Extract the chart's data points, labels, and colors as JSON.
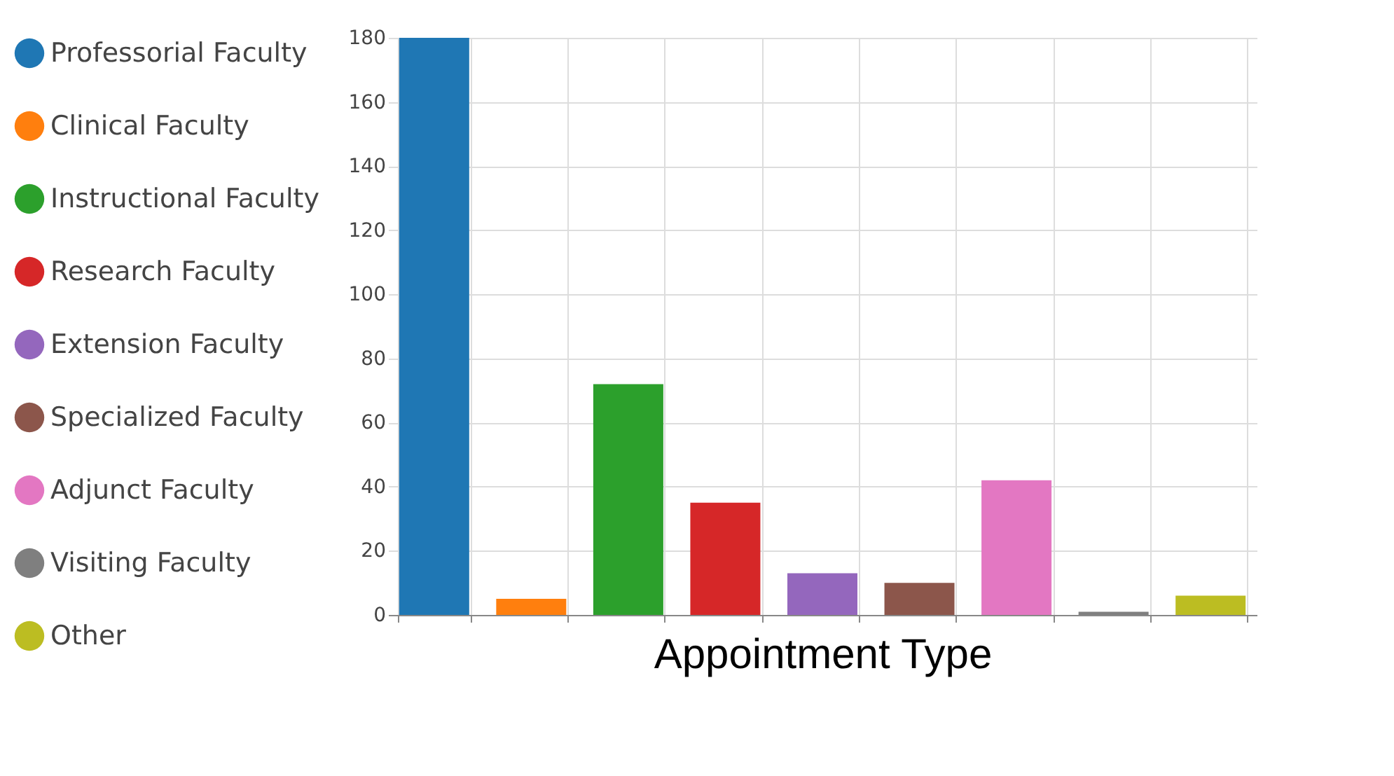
{
  "chart_data": {
    "type": "bar",
    "xlabel": "Appointment Type",
    "categories": [
      null,
      null,
      null,
      null,
      null,
      null,
      null,
      null,
      null
    ],
    "series": [
      {
        "name": "Professorial Faculty",
        "color": "#1f77b4",
        "values": [
          180,
          null,
          null,
          null,
          null,
          null,
          null,
          null,
          null
        ]
      },
      {
        "name": "Clinical Faculty",
        "color": "#ff7f0e",
        "values": [
          null,
          5,
          null,
          null,
          null,
          null,
          null,
          null,
          null
        ]
      },
      {
        "name": "Instructional Faculty",
        "color": "#2ca02c",
        "values": [
          null,
          null,
          72,
          null,
          null,
          null,
          null,
          null,
          null
        ]
      },
      {
        "name": "Research Faculty",
        "color": "#d62728",
        "values": [
          null,
          null,
          null,
          35,
          null,
          null,
          null,
          null,
          null
        ]
      },
      {
        "name": "Extension Faculty",
        "color": "#9467bd",
        "values": [
          null,
          null,
          null,
          null,
          13,
          null,
          null,
          null,
          null
        ]
      },
      {
        "name": "Specialized Faculty",
        "color": "#8c564b",
        "values": [
          null,
          null,
          null,
          null,
          null,
          10,
          null,
          null,
          null
        ]
      },
      {
        "name": "Adjunct Faculty",
        "color": "#e377c2",
        "values": [
          null,
          null,
          null,
          null,
          null,
          null,
          42,
          null,
          null
        ]
      },
      {
        "name": "Visiting Faculty",
        "color": "#7f7f7f",
        "values": [
          null,
          null,
          null,
          null,
          null,
          null,
          null,
          1,
          null
        ]
      },
      {
        "name": "Other",
        "color": "#bcbd22",
        "values": [
          null,
          null,
          null,
          null,
          null,
          null,
          null,
          null,
          6
        ]
      }
    ],
    "ylim": [
      0,
      180
    ],
    "yticks": [
      0,
      20,
      40,
      60,
      80,
      100,
      120,
      140,
      160,
      180
    ],
    "grid": true,
    "legend": "left",
    "tick_labels": "y"
  }
}
